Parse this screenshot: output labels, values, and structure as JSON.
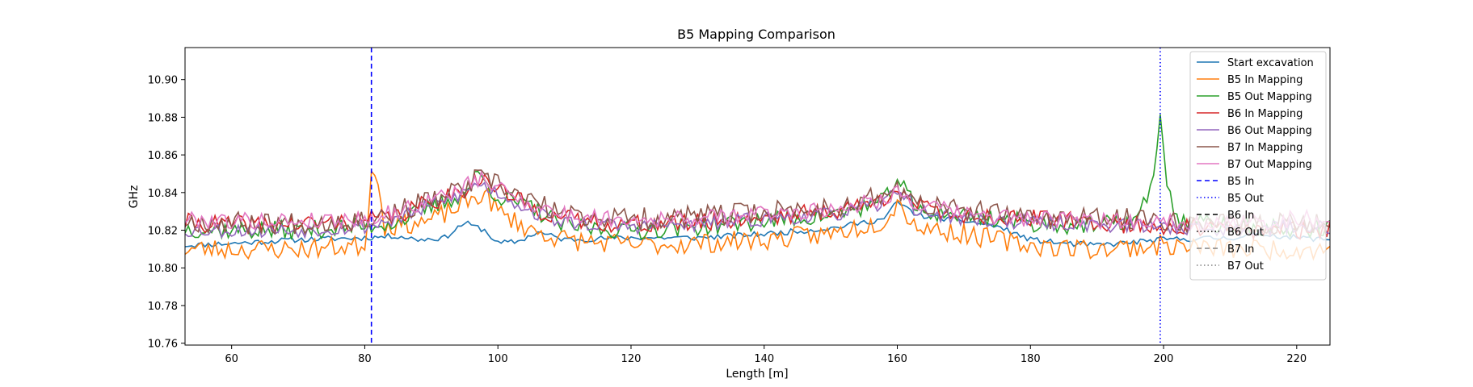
{
  "chart_data": {
    "type": "line",
    "title": "B5 Mapping Comparison",
    "xlabel": "Length [m]",
    "ylabel": "GHz",
    "xlim": [
      53,
      225
    ],
    "ylim": [
      10.759,
      10.917
    ],
    "xticks": [
      60,
      80,
      100,
      120,
      140,
      160,
      180,
      200,
      220
    ],
    "yticks": [
      10.76,
      10.78,
      10.8,
      10.82,
      10.84,
      10.86,
      10.88,
      10.9
    ],
    "ytick_labels": [
      "10.76",
      "10.78",
      "10.80",
      "10.82",
      "10.84",
      "10.86",
      "10.88",
      "10.90"
    ],
    "grid": false,
    "legend_position": "upper-right",
    "x_step": 0.5,
    "series": [
      {
        "name": "Start excavation",
        "color": "#1f77b4",
        "noise": 0.0015,
        "seed": 11,
        "profile": [
          [
            53,
            10.812
          ],
          [
            60,
            10.813
          ],
          [
            70,
            10.815
          ],
          [
            80,
            10.816
          ],
          [
            85,
            10.817
          ],
          [
            88,
            10.815
          ],
          [
            92,
            10.816
          ],
          [
            95,
            10.824
          ],
          [
            98,
            10.82
          ],
          [
            100,
            10.813
          ],
          [
            103,
            10.814
          ],
          [
            106,
            10.819
          ],
          [
            110,
            10.815
          ],
          [
            120,
            10.816
          ],
          [
            130,
            10.816
          ],
          [
            140,
            10.818
          ],
          [
            150,
            10.821
          ],
          [
            158,
            10.826
          ],
          [
            160,
            10.835
          ],
          [
            163,
            10.828
          ],
          [
            170,
            10.825
          ],
          [
            175,
            10.822
          ],
          [
            180,
            10.815
          ],
          [
            185,
            10.813
          ],
          [
            190,
            10.812
          ],
          [
            200,
            10.815
          ],
          [
            210,
            10.816
          ],
          [
            215,
            10.818
          ],
          [
            220,
            10.816
          ],
          [
            225,
            10.815
          ]
        ]
      },
      {
        "name": "B5 In Mapping",
        "color": "#ff7f0e",
        "noise": 0.0055,
        "seed": 23,
        "profile": [
          [
            53,
            10.81
          ],
          [
            60,
            10.81
          ],
          [
            70,
            10.81
          ],
          [
            80,
            10.812
          ],
          [
            81,
            10.85
          ],
          [
            82,
            10.849
          ],
          [
            83,
            10.822
          ],
          [
            90,
            10.825
          ],
          [
            95,
            10.834
          ],
          [
            98,
            10.84
          ],
          [
            100,
            10.83
          ],
          [
            105,
            10.82
          ],
          [
            110,
            10.815
          ],
          [
            120,
            10.812
          ],
          [
            130,
            10.813
          ],
          [
            140,
            10.815
          ],
          [
            150,
            10.818
          ],
          [
            158,
            10.825
          ],
          [
            160,
            10.835
          ],
          [
            163,
            10.822
          ],
          [
            170,
            10.818
          ],
          [
            180,
            10.812
          ],
          [
            190,
            10.81
          ],
          [
            200,
            10.812
          ],
          [
            210,
            10.81
          ],
          [
            220,
            10.81
          ],
          [
            225,
            10.81
          ]
        ]
      },
      {
        "name": "B5 Out Mapping",
        "color": "#2ca02c",
        "noise": 0.005,
        "seed": 37,
        "profile": [
          [
            53,
            10.821
          ],
          [
            60,
            10.82
          ],
          [
            70,
            10.82
          ],
          [
            80,
            10.822
          ],
          [
            85,
            10.825
          ],
          [
            90,
            10.832
          ],
          [
            95,
            10.84
          ],
          [
            97,
            10.85
          ],
          [
            100,
            10.838
          ],
          [
            105,
            10.832
          ],
          [
            110,
            10.822
          ],
          [
            120,
            10.82
          ],
          [
            130,
            10.822
          ],
          [
            140,
            10.825
          ],
          [
            150,
            10.828
          ],
          [
            158,
            10.835
          ],
          [
            160,
            10.848
          ],
          [
            163,
            10.83
          ],
          [
            170,
            10.828
          ],
          [
            180,
            10.824
          ],
          [
            190,
            10.822
          ],
          [
            196,
            10.826
          ],
          [
            198,
            10.84
          ],
          [
            199,
            10.866
          ],
          [
            199.5,
            10.878
          ],
          [
            200,
            10.86
          ],
          [
            200.5,
            10.848
          ],
          [
            202,
            10.825
          ],
          [
            210,
            10.822
          ],
          [
            220,
            10.82
          ],
          [
            225,
            10.822
          ]
        ]
      },
      {
        "name": "B6 In Mapping",
        "color": "#d62728",
        "noise": 0.005,
        "seed": 41,
        "profile": [
          [
            53,
            10.824
          ],
          [
            60,
            10.823
          ],
          [
            70,
            10.823
          ],
          [
            80,
            10.825
          ],
          [
            85,
            10.828
          ],
          [
            90,
            10.835
          ],
          [
            95,
            10.842
          ],
          [
            97,
            10.848
          ],
          [
            100,
            10.842
          ],
          [
            105,
            10.832
          ],
          [
            110,
            10.826
          ],
          [
            120,
            10.823
          ],
          [
            130,
            10.824
          ],
          [
            140,
            10.827
          ],
          [
            150,
            10.83
          ],
          [
            158,
            10.836
          ],
          [
            160,
            10.845
          ],
          [
            163,
            10.832
          ],
          [
            170,
            10.828
          ],
          [
            180,
            10.826
          ],
          [
            190,
            10.824
          ],
          [
            200,
            10.822
          ],
          [
            210,
            10.82
          ],
          [
            220,
            10.82
          ],
          [
            225,
            10.821
          ]
        ]
      },
      {
        "name": "B6 Out Mapping",
        "color": "#9467bd",
        "noise": 0.004,
        "seed": 53,
        "profile": [
          [
            53,
            10.82
          ],
          [
            60,
            10.82
          ],
          [
            70,
            10.82
          ],
          [
            80,
            10.822
          ],
          [
            85,
            10.826
          ],
          [
            90,
            10.833
          ],
          [
            95,
            10.84
          ],
          [
            97,
            10.845
          ],
          [
            100,
            10.84
          ],
          [
            105,
            10.83
          ],
          [
            110,
            10.824
          ],
          [
            120,
            10.822
          ],
          [
            130,
            10.823
          ],
          [
            140,
            10.826
          ],
          [
            150,
            10.828
          ],
          [
            158,
            10.834
          ],
          [
            160,
            10.843
          ],
          [
            163,
            10.83
          ],
          [
            170,
            10.826
          ],
          [
            180,
            10.824
          ],
          [
            190,
            10.823
          ],
          [
            200,
            10.822
          ],
          [
            210,
            10.82
          ],
          [
            220,
            10.822
          ],
          [
            225,
            10.822
          ]
        ]
      },
      {
        "name": "B7 In Mapping",
        "color": "#8c564b",
        "noise": 0.006,
        "seed": 67,
        "profile": [
          [
            53,
            10.825
          ],
          [
            60,
            10.824
          ],
          [
            70,
            10.824
          ],
          [
            80,
            10.826
          ],
          [
            85,
            10.83
          ],
          [
            90,
            10.836
          ],
          [
            95,
            10.842
          ],
          [
            97,
            10.848
          ],
          [
            100,
            10.844
          ],
          [
            105,
            10.835
          ],
          [
            110,
            10.828
          ],
          [
            120,
            10.826
          ],
          [
            130,
            10.827
          ],
          [
            140,
            10.83
          ],
          [
            150,
            10.832
          ],
          [
            158,
            10.838
          ],
          [
            160,
            10.842
          ],
          [
            163,
            10.834
          ],
          [
            170,
            10.83
          ],
          [
            180,
            10.827
          ],
          [
            190,
            10.826
          ],
          [
            200,
            10.826
          ],
          [
            210,
            10.823
          ],
          [
            220,
            10.824
          ],
          [
            225,
            10.825
          ]
        ]
      },
      {
        "name": "B7 Out Mapping",
        "color": "#e377c2",
        "noise": 0.0045,
        "seed": 79,
        "profile": [
          [
            53,
            10.826
          ],
          [
            60,
            10.825
          ],
          [
            70,
            10.825
          ],
          [
            80,
            10.826
          ],
          [
            85,
            10.83
          ],
          [
            90,
            10.836
          ],
          [
            95,
            10.843
          ],
          [
            97,
            10.847
          ],
          [
            100,
            10.843
          ],
          [
            105,
            10.834
          ],
          [
            110,
            10.828
          ],
          [
            120,
            10.826
          ],
          [
            130,
            10.826
          ],
          [
            140,
            10.829
          ],
          [
            150,
            10.831
          ],
          [
            158,
            10.837
          ],
          [
            160,
            10.841
          ],
          [
            163,
            10.833
          ],
          [
            170,
            10.829
          ],
          [
            180,
            10.826
          ],
          [
            190,
            10.825
          ],
          [
            200,
            10.825
          ],
          [
            210,
            10.823
          ],
          [
            220,
            10.826
          ],
          [
            225,
            10.826
          ]
        ]
      }
    ],
    "markers": [
      {
        "name": "B5 In",
        "x": 81,
        "color": "#0000ff",
        "dash": "6,4",
        "drawn": true
      },
      {
        "name": "B5 Out",
        "x": 199.5,
        "color": "#0000ff",
        "dash": "1.5,3",
        "drawn": true
      },
      {
        "name": "B6 In",
        "color": "#000000",
        "dash": "6,4",
        "drawn": false
      },
      {
        "name": "B6 Out",
        "color": "#000000",
        "dash": "1.5,3",
        "drawn": false
      },
      {
        "name": "B7 In",
        "color": "#808080",
        "dash": "6,4",
        "drawn": false
      },
      {
        "name": "B7 Out",
        "color": "#808080",
        "dash": "1.5,3",
        "drawn": false
      }
    ]
  }
}
